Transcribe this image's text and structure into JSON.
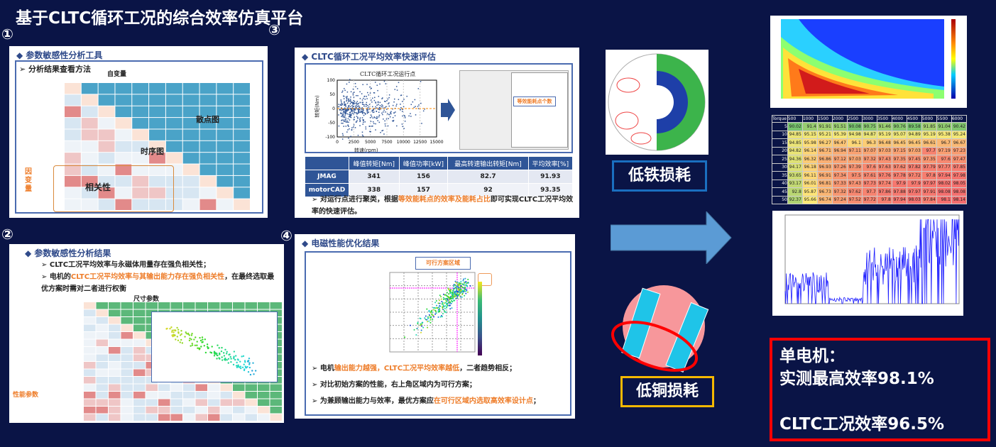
{
  "title": "基于CLTC循环工况的综合效率仿真平台",
  "markers": [
    "①",
    "②",
    "③",
    "④"
  ],
  "panel1": {
    "heading": "◆ 参数敏感性分析工具",
    "sub": "➢ 分析结果查看方法",
    "independent": "自变量",
    "dependent": "因变量",
    "scatter": "散点图",
    "timeseries": "时序图",
    "correlation": "相关性"
  },
  "panel2": {
    "heading": "◆ 参数敏感性分析结果",
    "bullets": [
      "CLTC工况平均效率与永磁体用量存在强负相关性；"
    ],
    "bullet2_pre": "电机的",
    "bullet2_hl": "CLTC工况平均效率与其输出能力存在强负相关性",
    "bullet2_post": "，在最终选取最优方案时需对二者进行权衡",
    "size_params": "尺寸参数",
    "perf_params": "性能参数"
  },
  "panel3": {
    "heading": "◆ CLTC循环工况平均效率快速评估",
    "chart_title": "CLTC循环工况运行点",
    "ylabel": "转矩(Nm)",
    "xlabel": "转速(rpm)",
    "xticks": [
      "0",
      "2500",
      "5000",
      "7500",
      "10000",
      "12500",
      "15000"
    ],
    "yticks": [
      "100",
      "50",
      "0",
      "-50",
      "-100"
    ],
    "callout": "等效能耗点个数",
    "table": {
      "headers": [
        "",
        "峰值转矩[Nm]",
        "峰值功率[kW]",
        "最高转速输出转矩[Nm]",
        "平均效率[%]"
      ],
      "rows": [
        [
          "JMAG",
          "341",
          "156",
          "82.7",
          "91.93"
        ],
        [
          "motorCAD",
          "338",
          "157",
          "92",
          "93.35"
        ]
      ]
    },
    "bullet_pre": "对运行点进行聚类，根据",
    "bullet_hl": "等效能耗点的效率及能耗占比",
    "bullet_post": "即可实现CLTC工况平均效率的快速评估。"
  },
  "panel4": {
    "heading": "◆ 电磁性能优化结果",
    "callout": "可行方案区域",
    "bullets": [
      {
        "pre": "电机",
        "hl": "输出能力越强，CLTC工况平均效率越低",
        "post": "，二者趋势相反；"
      },
      {
        "pre": "对比初始方案的性能，右上角区域内为可行方案；",
        "hl": "",
        "post": ""
      },
      {
        "pre": "为兼顾输出能力与效率，最优方案应",
        "hl": "在可行区域内选取高效率设计点",
        "post": "；"
      }
    ]
  },
  "labels": {
    "iron": "低铁损耗",
    "copper": "低铜损耗"
  },
  "heatmap": {
    "corner": "Torque",
    "cols": [
      "500",
      "1000",
      "1500",
      "2000",
      "2500",
      "3000",
      "3500",
      "4000",
      "4500",
      "5000",
      "5500",
      "6000"
    ],
    "rows": [
      "5",
      "10",
      "15",
      "20",
      "25",
      "30",
      "35",
      "40",
      "45",
      "50"
    ],
    "values": [
      [
        90.02,
        91.4,
        91.91,
        91.51,
        90.08,
        90.75,
        91.46,
        90.76,
        89.58,
        91.85,
        91.04,
        90.42
      ],
      [
        94.85,
        95.15,
        95.21,
        95.39,
        94.98,
        94.87,
        95.19,
        95.07,
        94.89,
        95.19,
        95.38,
        95.24
      ],
      [
        94.85,
        95.98,
        96.27,
        96.47,
        96.1,
        96.3,
        96.48,
        96.45,
        96.45,
        96.61,
        96.7,
        96.67
      ],
      [
        94.82,
        96.14,
        96.71,
        96.94,
        97.11,
        97.07,
        97.03,
        97.15,
        97.03,
        97.7,
        97.19,
        97.23
      ],
      [
        94.36,
        96.32,
        96.86,
        97.12,
        97.03,
        97.32,
        97.43,
        97.35,
        97.45,
        97.35,
        97.6,
        97.47
      ],
      [
        94.17,
        96.18,
        96.93,
        97.26,
        97.39,
        97.6,
        97.63,
        97.62,
        97.82,
        97.79,
        97.77,
        97.85
      ],
      [
        93.65,
        96.11,
        96.91,
        97.34,
        97.5,
        97.61,
        97.76,
        97.78,
        97.72,
        97.8,
        97.94,
        97.98
      ],
      [
        93.17,
        96.01,
        96.81,
        97.33,
        97.43,
        97.73,
        97.74,
        97.9,
        97.9,
        97.97,
        98.02,
        98.05
      ],
      [
        92.8,
        95.87,
        96.73,
        97.32,
        97.62,
        97.7,
        97.86,
        97.88,
        97.97,
        97.91,
        98.08,
        98.08
      ],
      [
        92.37,
        95.66,
        96.74,
        97.24,
        97.52,
        97.72,
        97.8,
        97.94,
        98.03,
        97.84,
        98.1,
        98.14
      ]
    ]
  },
  "result": {
    "line1": "单电机：",
    "line2": "实测最高效率98.1%",
    "line3": "CLTC工况效率96.5%"
  },
  "colors": {
    "background": "#0a1446",
    "accent_orange": "#ee7d2a",
    "heading_blue": "#2f4a8a",
    "result_border": "#ff0000",
    "iron_border": "#1a6fc0",
    "copper_border": "#f5b800"
  }
}
